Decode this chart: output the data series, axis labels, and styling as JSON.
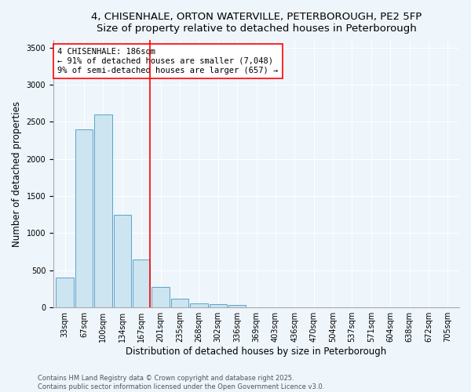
{
  "title_line1": "4, CHISENHALE, ORTON WATERVILLE, PETERBOROUGH, PE2 5FP",
  "title_line2": "Size of property relative to detached houses in Peterborough",
  "xlabel": "Distribution of detached houses by size in Peterborough",
  "ylabel": "Number of detached properties",
  "categories": [
    "33sqm",
    "67sqm",
    "100sqm",
    "134sqm",
    "167sqm",
    "201sqm",
    "235sqm",
    "268sqm",
    "302sqm",
    "336sqm",
    "369sqm",
    "403sqm",
    "436sqm",
    "470sqm",
    "504sqm",
    "537sqm",
    "571sqm",
    "604sqm",
    "638sqm",
    "672sqm",
    "705sqm"
  ],
  "values": [
    400,
    2400,
    2600,
    1250,
    650,
    280,
    120,
    60,
    40,
    30,
    0,
    0,
    0,
    0,
    0,
    0,
    0,
    0,
    0,
    0,
    0
  ],
  "bar_color": "#cce5f0",
  "bar_edge_color": "#5ba3c9",
  "vline_x_index": 4,
  "vline_color": "red",
  "annotation_text": "4 CHISENHALE: 186sqm\n← 91% of detached houses are smaller (7,048)\n9% of semi-detached houses are larger (657) →",
  "ylim": [
    0,
    3600
  ],
  "yticks": [
    0,
    500,
    1000,
    1500,
    2000,
    2500,
    3000,
    3500
  ],
  "footer_line1": "Contains HM Land Registry data © Crown copyright and database right 2025.",
  "footer_line2": "Contains public sector information licensed under the Open Government Licence v3.0.",
  "background_color": "#eef5fb",
  "grid_color": "#ffffff",
  "title_fontsize": 9.5,
  "subtitle_fontsize": 9,
  "axis_label_fontsize": 8.5,
  "tick_fontsize": 7,
  "annotation_fontsize": 7.5,
  "footer_fontsize": 6
}
